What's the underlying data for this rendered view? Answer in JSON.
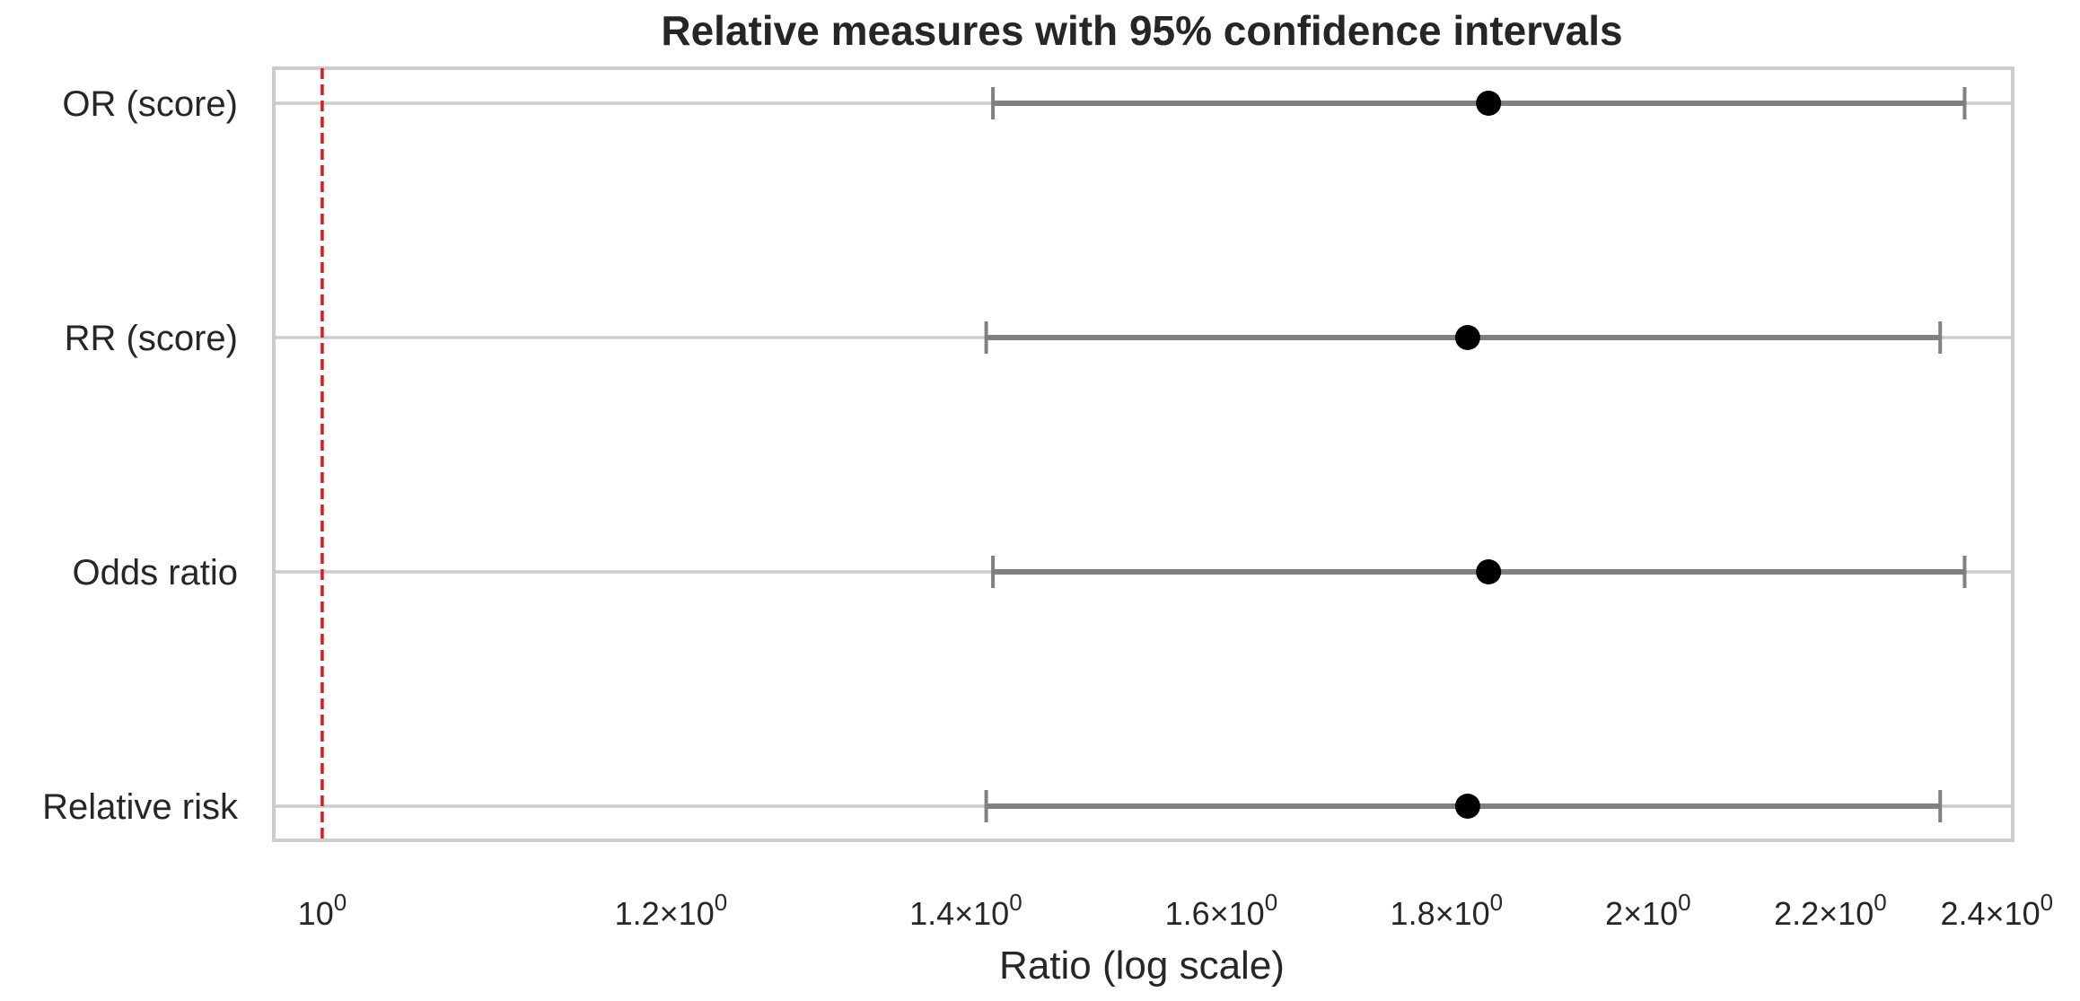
{
  "chart_data": {
    "type": "scatter",
    "title": "Relative measures with 95% confidence intervals",
    "xlabel": "Ratio (log scale)",
    "ylabel": "",
    "x_scale": "log",
    "xlim": [
      0.975,
      2.42
    ],
    "grid": "horizontal",
    "reference_line": {
      "x": 1.0,
      "color": "#e8141d",
      "style": "dashed"
    },
    "point_color": "#000000",
    "interval_color": "#808080",
    "x_ticks": [
      {
        "value": 1.0,
        "base": "10",
        "exp": "0"
      },
      {
        "value": 1.2,
        "base": "1.2×10",
        "exp": "0"
      },
      {
        "value": 1.4,
        "base": "1.4×10",
        "exp": "0"
      },
      {
        "value": 1.6,
        "base": "1.6×10",
        "exp": "0"
      },
      {
        "value": 1.8,
        "base": "1.8×10",
        "exp": "0"
      },
      {
        "value": 2.0,
        "base": "2×10",
        "exp": "0"
      },
      {
        "value": 2.2,
        "base": "2.2×10",
        "exp": "0"
      },
      {
        "value": 2.4,
        "base": "2.4×10",
        "exp": "0"
      }
    ],
    "rows": [
      {
        "label": "OR (score)",
        "estimate": 1.84,
        "lower": 1.42,
        "upper": 2.36
      },
      {
        "label": "RR (score)",
        "estimate": 1.82,
        "lower": 1.415,
        "upper": 2.33
      },
      {
        "label": "Odds ratio",
        "estimate": 1.84,
        "lower": 1.42,
        "upper": 2.36
      },
      {
        "label": "Relative risk",
        "estimate": 1.82,
        "lower": 1.415,
        "upper": 2.33
      }
    ]
  }
}
